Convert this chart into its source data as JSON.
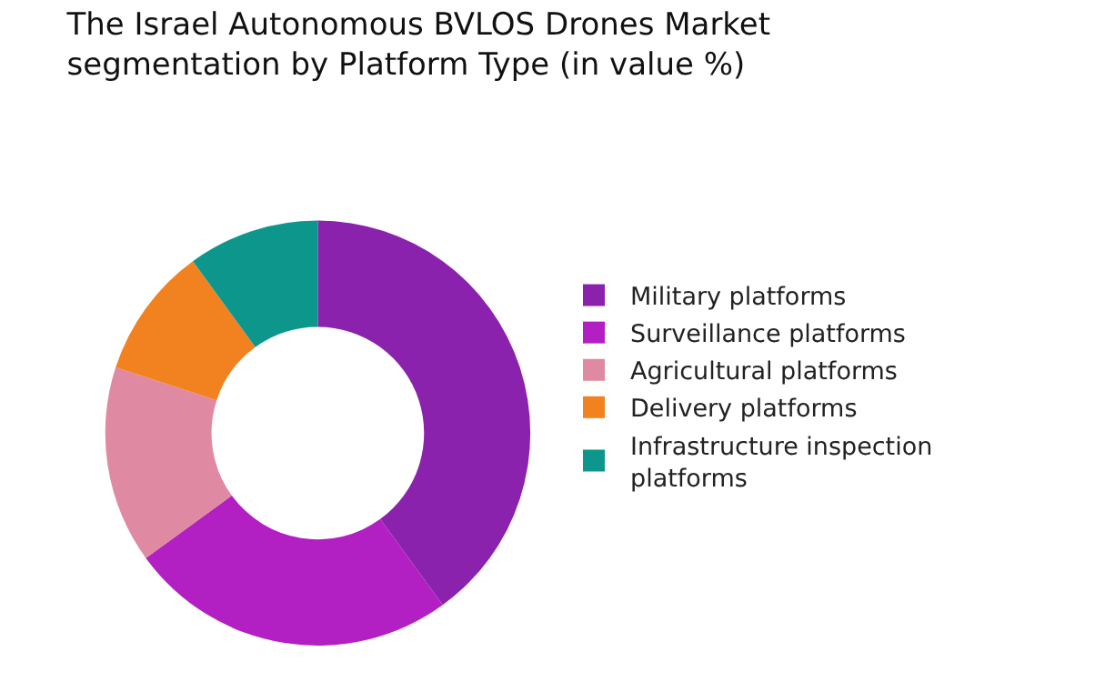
{
  "chart_data": {
    "type": "donut",
    "title": "The Israel Autonomous BVLOS Drones Market segmentation by Platform Type (in value %)",
    "categories": [
      "Military platforms",
      "Surveillance platforms",
      "Agricultural platforms",
      "Delivery platforms",
      "Infrastructure inspection platforms"
    ],
    "values": [
      40,
      25,
      15,
      10,
      10
    ],
    "colors": [
      "#8a22ad",
      "#b21fc2",
      "#df8aa2",
      "#f28220",
      "#0d978c"
    ],
    "legend": "right"
  }
}
